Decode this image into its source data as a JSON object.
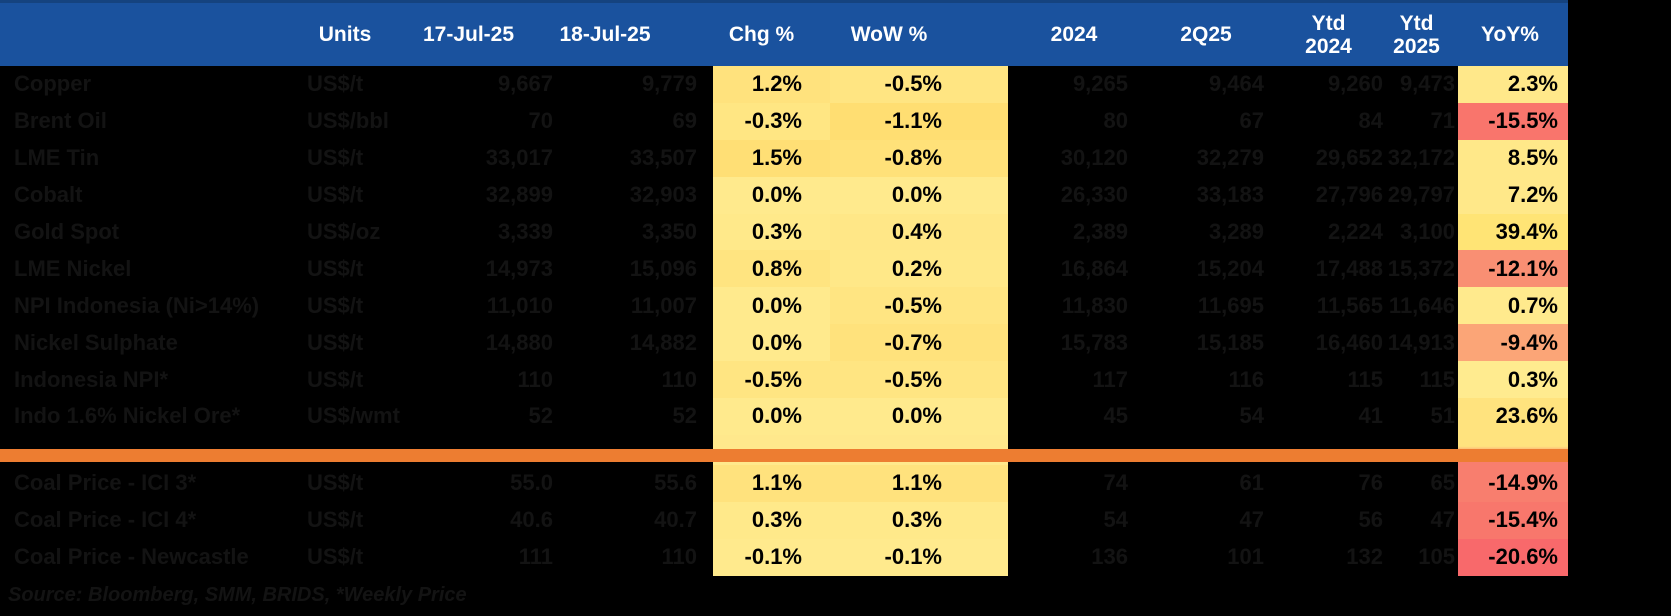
{
  "colors": {
    "background": "#000000",
    "header_bg": "#1A529E",
    "header_edge": "#15437F",
    "header_text": "#FFFFFF",
    "faint_text": "#131313",
    "divider_orange": "#ED7D31",
    "strip_yellow": "#FFE88C"
  },
  "header": {
    "units": "Units",
    "d17": "17-Jul-25",
    "d18": "18-Jul-25",
    "chg": "Chg %",
    "wow": "WoW %",
    "y2024": "2024",
    "q225": "2Q25",
    "ytd_label": "Ytd",
    "ytd24_year": "2024",
    "ytd25_year": "2025",
    "yoy": "YoY%"
  },
  "rows": [
    {
      "label": "Copper",
      "unit": "US$/t",
      "d17": "9,667",
      "d18": "9,779",
      "chg": "1.2%",
      "wow": "-0.5%",
      "y2024": "9,265",
      "q225": "9,464",
      "ytd24": "9,260",
      "ytd25": "9,473",
      "yoy": "2.3%",
      "chg_bg": "#FFE27D",
      "wow_bg": "#FFE582",
      "yoy_bg": "#FFE88A"
    },
    {
      "label": "Brent Oil",
      "unit": "US$/bbl",
      "d17": "70",
      "d18": "69",
      "chg": "-0.3%",
      "wow": "-1.1%",
      "y2024": "80",
      "q225": "67",
      "ytd24": "84",
      "ytd25": "71",
      "yoy": "-15.5%",
      "chg_bg": "#FFE683",
      "wow_bg": "#FFDE72",
      "yoy_bg": "#F9756C"
    },
    {
      "label": "LME Tin",
      "unit": "US$/t",
      "d17": "33,017",
      "d18": "33,507",
      "chg": "1.5%",
      "wow": "-0.8%",
      "y2024": "30,120",
      "q225": "32,279",
      "ytd24": "29,652",
      "ytd25": "32,172",
      "yoy": "8.5%",
      "chg_bg": "#FFDF75",
      "wow_bg": "#FFE179",
      "yoy_bg": "#FFE889"
    },
    {
      "label": "Cobalt",
      "unit": "US$/t",
      "d17": "32,899",
      "d18": "32,903",
      "chg": "0.0%",
      "wow": "0.0%",
      "y2024": "26,330",
      "q225": "33,183",
      "ytd24": "27,796",
      "ytd25": "29,797",
      "yoy": "7.2%",
      "chg_bg": "#FFEA8D",
      "wow_bg": "#FFEA8D",
      "yoy_bg": "#FFE889"
    },
    {
      "label": "Gold Spot",
      "unit": "US$/oz",
      "d17": "3,339",
      "d18": "3,350",
      "chg": "0.3%",
      "wow": "0.4%",
      "y2024": "2,389",
      "q225": "3,289",
      "ytd24": "2,224",
      "ytd25": "3,100",
      "yoy": "39.4%",
      "chg_bg": "#FFE98A",
      "wow_bg": "#FFE787",
      "yoy_bg": "#FFE475"
    },
    {
      "label": "LME Nickel",
      "unit": "US$/t",
      "d17": "14,973",
      "d18": "15,096",
      "chg": "0.8%",
      "wow": "0.2%",
      "y2024": "16,864",
      "q225": "15,204",
      "ytd24": "17,488",
      "ytd25": "15,372",
      "yoy": "-12.1%",
      "chg_bg": "#FFE480",
      "wow_bg": "#FFE888",
      "yoy_bg": "#F98F73"
    },
    {
      "label": "NPI Indonesia (Ni>14%)",
      "unit": "US$/t",
      "d17": "11,010",
      "d18": "11,007",
      "chg": "0.0%",
      "wow": "-0.5%",
      "y2024": "11,830",
      "q225": "11,695",
      "ytd24": "11,565",
      "ytd25": "11,646",
      "yoy": "0.7%",
      "chg_bg": "#FFEA8D",
      "wow_bg": "#FFE582",
      "yoy_bg": "#FFEA8D"
    },
    {
      "label": "Nickel Sulphate",
      "unit": "US$/t",
      "d17": "14,880",
      "d18": "14,882",
      "chg": "0.0%",
      "wow": "-0.7%",
      "y2024": "15,783",
      "q225": "15,185",
      "ytd24": "16,460",
      "ytd25": "14,913",
      "yoy": "-9.4%",
      "chg_bg": "#FFEA8D",
      "wow_bg": "#FFE27C",
      "yoy_bg": "#FBA577"
    },
    {
      "label": "Indonesia NPI*",
      "unit": "US$/t",
      "d17": "110",
      "d18": "110",
      "chg": "-0.5%",
      "wow": "-0.5%",
      "y2024": "117",
      "q225": "116",
      "ytd24": "115",
      "ytd25": "115",
      "yoy": "0.3%",
      "chg_bg": "#FFE582",
      "wow_bg": "#FFE582",
      "yoy_bg": "#FFEB8F"
    },
    {
      "label": "Indo 1.6% Nickel Ore*",
      "unit": "US$/wmt",
      "d17": "52",
      "d18": "52",
      "chg": "0.0%",
      "wow": "0.0%",
      "y2024": "45",
      "q225": "54",
      "ytd24": "41",
      "ytd25": "51",
      "yoy": "23.6%",
      "chg_bg": "#FFEA8D",
      "wow_bg": "#FFEA8D",
      "yoy_bg": "#FFE37E"
    },
    {
      "type": "divider"
    },
    {
      "label": "Coal Price - ICI 3*",
      "unit": "US$/t",
      "d17": "55.0",
      "d18": "55.6",
      "chg": "1.1%",
      "wow": "1.1%",
      "y2024": "74",
      "q225": "61",
      "ytd24": "76",
      "ytd25": "65",
      "yoy": "-14.9%",
      "chg_bg": "#FFE27D",
      "wow_bg": "#FFE27D",
      "yoy_bg": "#F87E6E"
    },
    {
      "label": "Coal Price - ICI 4*",
      "unit": "US$/t",
      "d17": "40.6",
      "d18": "40.7",
      "chg": "0.3%",
      "wow": "0.3%",
      "y2024": "54",
      "q225": "47",
      "ytd24": "56",
      "ytd25": "47",
      "yoy": "-15.4%",
      "chg_bg": "#FFE98A",
      "wow_bg": "#FFE98A",
      "yoy_bg": "#F8776C"
    },
    {
      "label": "Coal Price - Newcastle",
      "unit": "US$/t",
      "d17": "111",
      "d18": "110",
      "chg": "-0.1%",
      "wow": "-0.1%",
      "y2024": "136",
      "q225": "101",
      "ytd24": "132",
      "ytd25": "105",
      "yoy": "-20.6%",
      "chg_bg": "#FFEA8D",
      "wow_bg": "#FFEA8D",
      "yoy_bg": "#F8696B"
    }
  ],
  "divider_yoy_top": "#FFE37E",
  "divider_yoy_bottom": "#F87E6E",
  "source_note": "Source: Bloomberg, SMM, BRIDS, *Weekly Price"
}
